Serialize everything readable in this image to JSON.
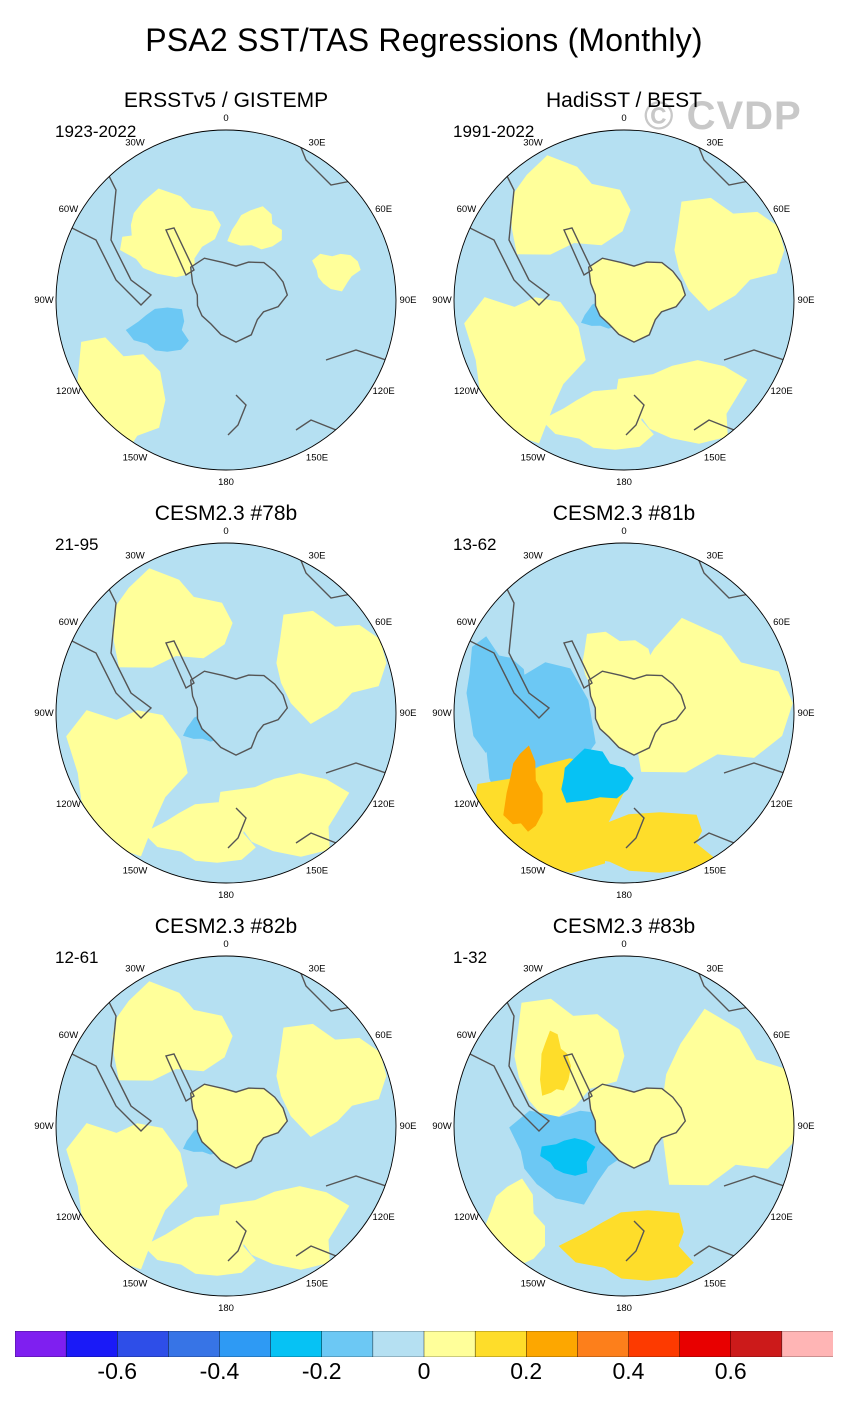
{
  "title": "PSA2 SST/TAS Regressions (Monthly)",
  "watermark": "© CVDP",
  "lon_labels": [
    "0",
    "30E",
    "60E",
    "90E",
    "120E",
    "150E",
    "180",
    "150W",
    "120W",
    "90W",
    "60W",
    "30W"
  ],
  "panels": [
    {
      "id": "p1",
      "title": "ERSSTv5 / GISTEMP",
      "period": "1923-2022",
      "pattern": "weak"
    },
    {
      "id": "p2",
      "title": "HadiSST / BEST",
      "period": "1991-2022",
      "pattern": "mixed"
    },
    {
      "id": "p3",
      "title": "CESM2.3 #78b",
      "period": "21-95",
      "pattern": "mixed"
    },
    {
      "id": "p4",
      "title": "CESM2.3 #81b",
      "period": "13-62",
      "pattern": "strong"
    },
    {
      "id": "p5",
      "title": "CESM2.3 #82b",
      "period": "12-61",
      "pattern": "mixed"
    },
    {
      "id": "p6",
      "title": "CESM2.3 #83b",
      "period": "1-32",
      "pattern": "strong2"
    }
  ],
  "colorbar": {
    "colors": [
      "#7f1ff0",
      "#1a1af7",
      "#2e4ee8",
      "#3774e6",
      "#2e9af4",
      "#06c2f4",
      "#6cc8f4",
      "#b5e0f2",
      "#ffff9a",
      "#fedd2a",
      "#fda700",
      "#fd7f1b",
      "#fd3a00",
      "#e80000",
      "#cc1a1a",
      "#ffb5b5"
    ],
    "labels": [
      "-0.6",
      "-0.4",
      "-0.2",
      "0",
      "0.2",
      "0.4",
      "0.6"
    ]
  }
}
